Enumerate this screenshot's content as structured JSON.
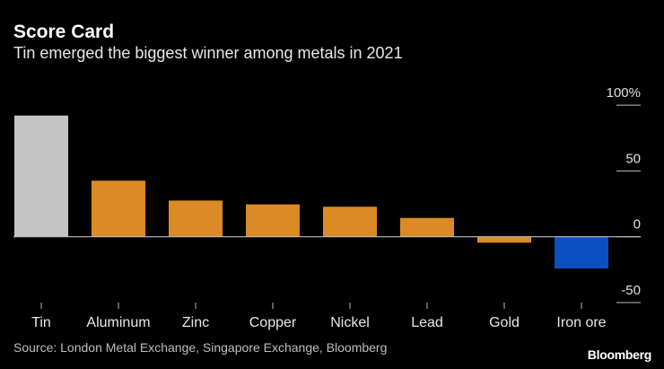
{
  "title": "Score Card",
  "subtitle": "Tin emerged the biggest winner among metals in 2021",
  "source": "Source: London Metal Exchange, Singapore Exchange, Bloomberg",
  "logo": "Bloomberg",
  "colors": {
    "highlight": "#c4c4c4",
    "positive": "#dc8a26",
    "negative_highlight": "#0b4fc4",
    "axis": "#bdbdbd"
  },
  "chart_data": {
    "type": "bar",
    "title": "Score Card",
    "subtitle": "Tin emerged the biggest winner among metals in 2021",
    "categories": [
      "Tin",
      "Aluminum",
      "Zinc",
      "Copper",
      "Nickel",
      "Lead",
      "Gold",
      "Iron ore"
    ],
    "values": [
      92.1,
      42.6,
      27.5,
      24.6,
      22.8,
      14.3,
      -4.5,
      -24.1
    ],
    "bar_colors": [
      "#c4c4c4",
      "#dc8a26",
      "#dc8a26",
      "#dc8a26",
      "#dc8a26",
      "#dc8a26",
      "#dc8a26",
      "#0b4fc4"
    ],
    "ylim": [
      -50,
      100
    ],
    "yticks": [
      100,
      50,
      0,
      -50
    ],
    "ytick_labels": [
      "100%",
      "50",
      "0",
      "-50"
    ],
    "y_axis_position": "right",
    "grid": false,
    "xlabel": "",
    "ylabel": ""
  }
}
